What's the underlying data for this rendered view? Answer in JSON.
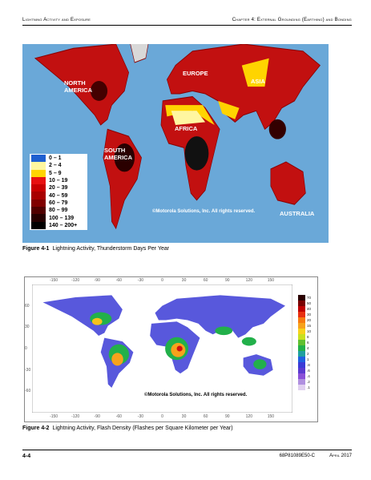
{
  "header": {
    "left": "Lightning Activity and Exposure",
    "right": "Chapter 4: External Grounding (Earthing) and Bonding"
  },
  "figure1": {
    "regions": [
      "NORTH AMERICA",
      "EUROPE",
      "ASIA",
      "AFRICA",
      "SOUTH AMERICA",
      "AUSTRALIA"
    ],
    "legend": [
      {
        "label": "0 – 1",
        "color": "#1e5fd0"
      },
      {
        "label": "2 – 4",
        "color": "#fff7a0"
      },
      {
        "label": "5 – 9",
        "color": "#ffd400"
      },
      {
        "label": "10 – 19",
        "color": "#e81010"
      },
      {
        "label": "20 – 39",
        "color": "#c80000"
      },
      {
        "label": "40 – 59",
        "color": "#a80000"
      },
      {
        "label": "60 – 79",
        "color": "#800000"
      },
      {
        "label": "80 – 99",
        "color": "#500000"
      },
      {
        "label": "100 – 139",
        "color": "#250000"
      },
      {
        "label": "140 – 200+",
        "color": "#000000"
      }
    ],
    "copyright": "©Motorola Solutions, Inc. All rights reserved.",
    "caption_number": "Figure 4-1",
    "caption_text": "Lightning Activity, Thunderstorm Days Per Year"
  },
  "figure2": {
    "lon_ticks": [
      "-150",
      "-120",
      "-90",
      "-60",
      "-30",
      "0",
      "30",
      "60",
      "90",
      "120",
      "150"
    ],
    "lat_ticks": [
      "60",
      "30",
      "0",
      "-30",
      "-60"
    ],
    "scale": [
      {
        "label": "70",
        "color": "#2a0000"
      },
      {
        "label": "50",
        "color": "#7a0000"
      },
      {
        "label": "40",
        "color": "#c00000"
      },
      {
        "label": "30",
        "color": "#e83010"
      },
      {
        "label": "20",
        "color": "#f77a10"
      },
      {
        "label": "15",
        "color": "#f7a21c"
      },
      {
        "label": "10",
        "color": "#f7d21c"
      },
      {
        "label": "8",
        "color": "#c8e020"
      },
      {
        "label": "6",
        "color": "#60c030"
      },
      {
        "label": "4",
        "color": "#22b04a"
      },
      {
        "label": "2",
        "color": "#20a0a0"
      },
      {
        "label": "1",
        "color": "#2060e0"
      },
      {
        "label": ".8",
        "color": "#3b3bd6"
      },
      {
        "label": ".6",
        "color": "#5a3ad0"
      },
      {
        "label": ".4",
        "color": "#8a50d8"
      },
      {
        "label": ".2",
        "color": "#b090e0"
      },
      {
        "label": ".1",
        "color": "#e0d0f0"
      }
    ],
    "copyright": "©Motorola Solutions, Inc. All rights reserved.",
    "caption_number": "Figure 4-2",
    "caption_text": "Lightning Activity, Flash Density (Flashes per Square Kilometer per Year)"
  },
  "footer": {
    "page": "4-4",
    "doc": "68P81089E50-C",
    "date": "April 2017"
  }
}
